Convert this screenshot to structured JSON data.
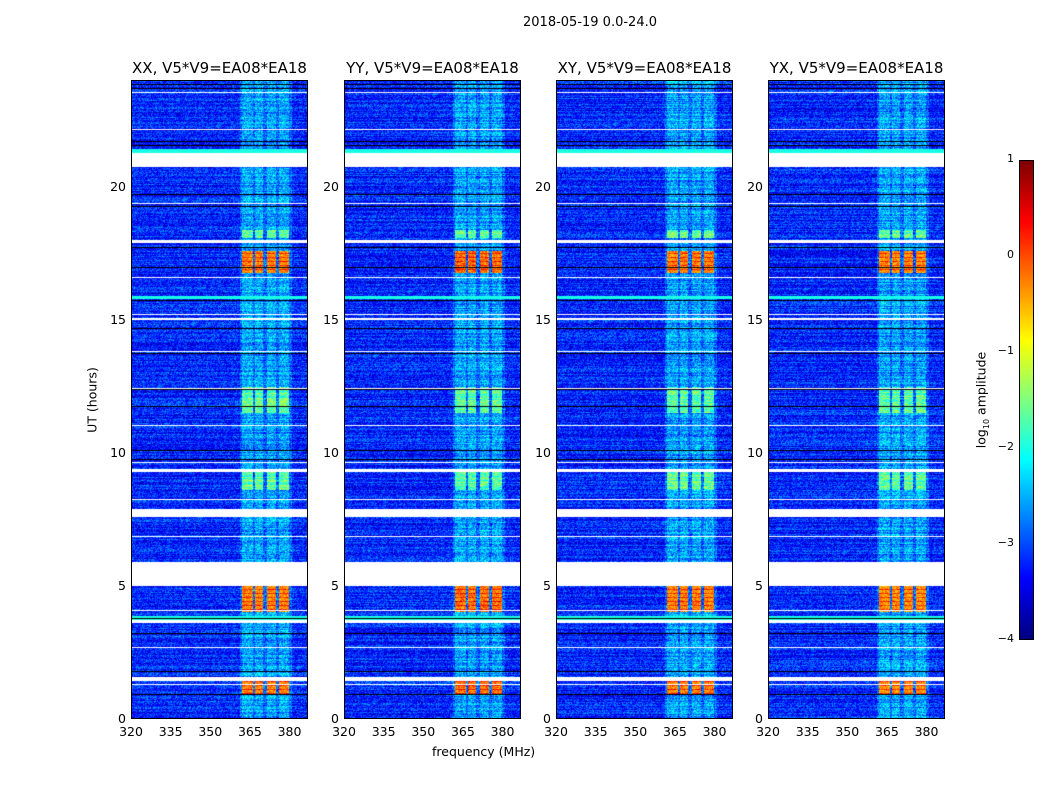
{
  "chart_data": {
    "type": "heatmap",
    "suptitle": "2018-05-19 0.0-24.0",
    "xlabel": "frequency (MHz)",
    "ylabel": "UT (hours)",
    "xlim": [
      320,
      387
    ],
    "ylim": [
      0,
      24
    ],
    "xticks": [
      "320",
      "335",
      "350",
      "365",
      "380"
    ],
    "xtick_values": [
      320,
      335,
      350,
      365,
      380
    ],
    "yticks": [
      "0",
      "5",
      "10",
      "15",
      "20"
    ],
    "ytick_values": [
      0,
      5,
      10,
      15,
      20
    ],
    "colormap": "jet",
    "colorbar": {
      "label_prefix": "log",
      "label_sub": "10",
      "label_suffix": " amplitude",
      "range": [
        -4,
        1
      ],
      "ticks": [
        "1",
        "0",
        "−1",
        "−2",
        "−3",
        "−4"
      ],
      "tick_values": [
        1,
        0,
        -1,
        -2,
        -3,
        -4
      ]
    },
    "panels": [
      {
        "title": "XX, V5*V9=EA08*EA18",
        "bright_level": 0.9
      },
      {
        "title": "YY, V5*V9=EA08*EA18",
        "bright_level": 1.0
      },
      {
        "title": "XY, V5*V9=EA08*EA18",
        "bright_level": 0.9
      },
      {
        "title": "YX, V5*V9=EA08*EA18",
        "bright_level": 0.85
      }
    ],
    "background_log_amplitude": -3.2,
    "rfi_channel_bands_mhz": [
      [
        362,
        366
      ],
      [
        367,
        370
      ],
      [
        371.5,
        375
      ],
      [
        376,
        380
      ]
    ],
    "flagged_time_ranges_hours": [
      [
        20.8,
        21.3
      ],
      [
        5.0,
        5.9
      ],
      [
        7.6,
        7.9
      ],
      [
        1.4,
        1.55
      ],
      [
        3.6,
        3.7
      ],
      [
        9.3,
        9.4
      ],
      [
        15.0,
        15.1
      ],
      [
        17.9,
        18.0
      ]
    ],
    "bright_time_ranges_hours": [
      [
        0.9,
        1.4
      ],
      [
        4.0,
        5.0
      ],
      [
        16.8,
        17.6
      ]
    ],
    "moderate_time_ranges_hours": [
      [
        8.6,
        9.3
      ],
      [
        11.5,
        12.5
      ],
      [
        18.1,
        18.4
      ]
    ],
    "band_rows_hours": [
      [
        21.3,
        21.45
      ],
      [
        3.7,
        3.85
      ],
      [
        15.8,
        15.9
      ]
    ]
  }
}
